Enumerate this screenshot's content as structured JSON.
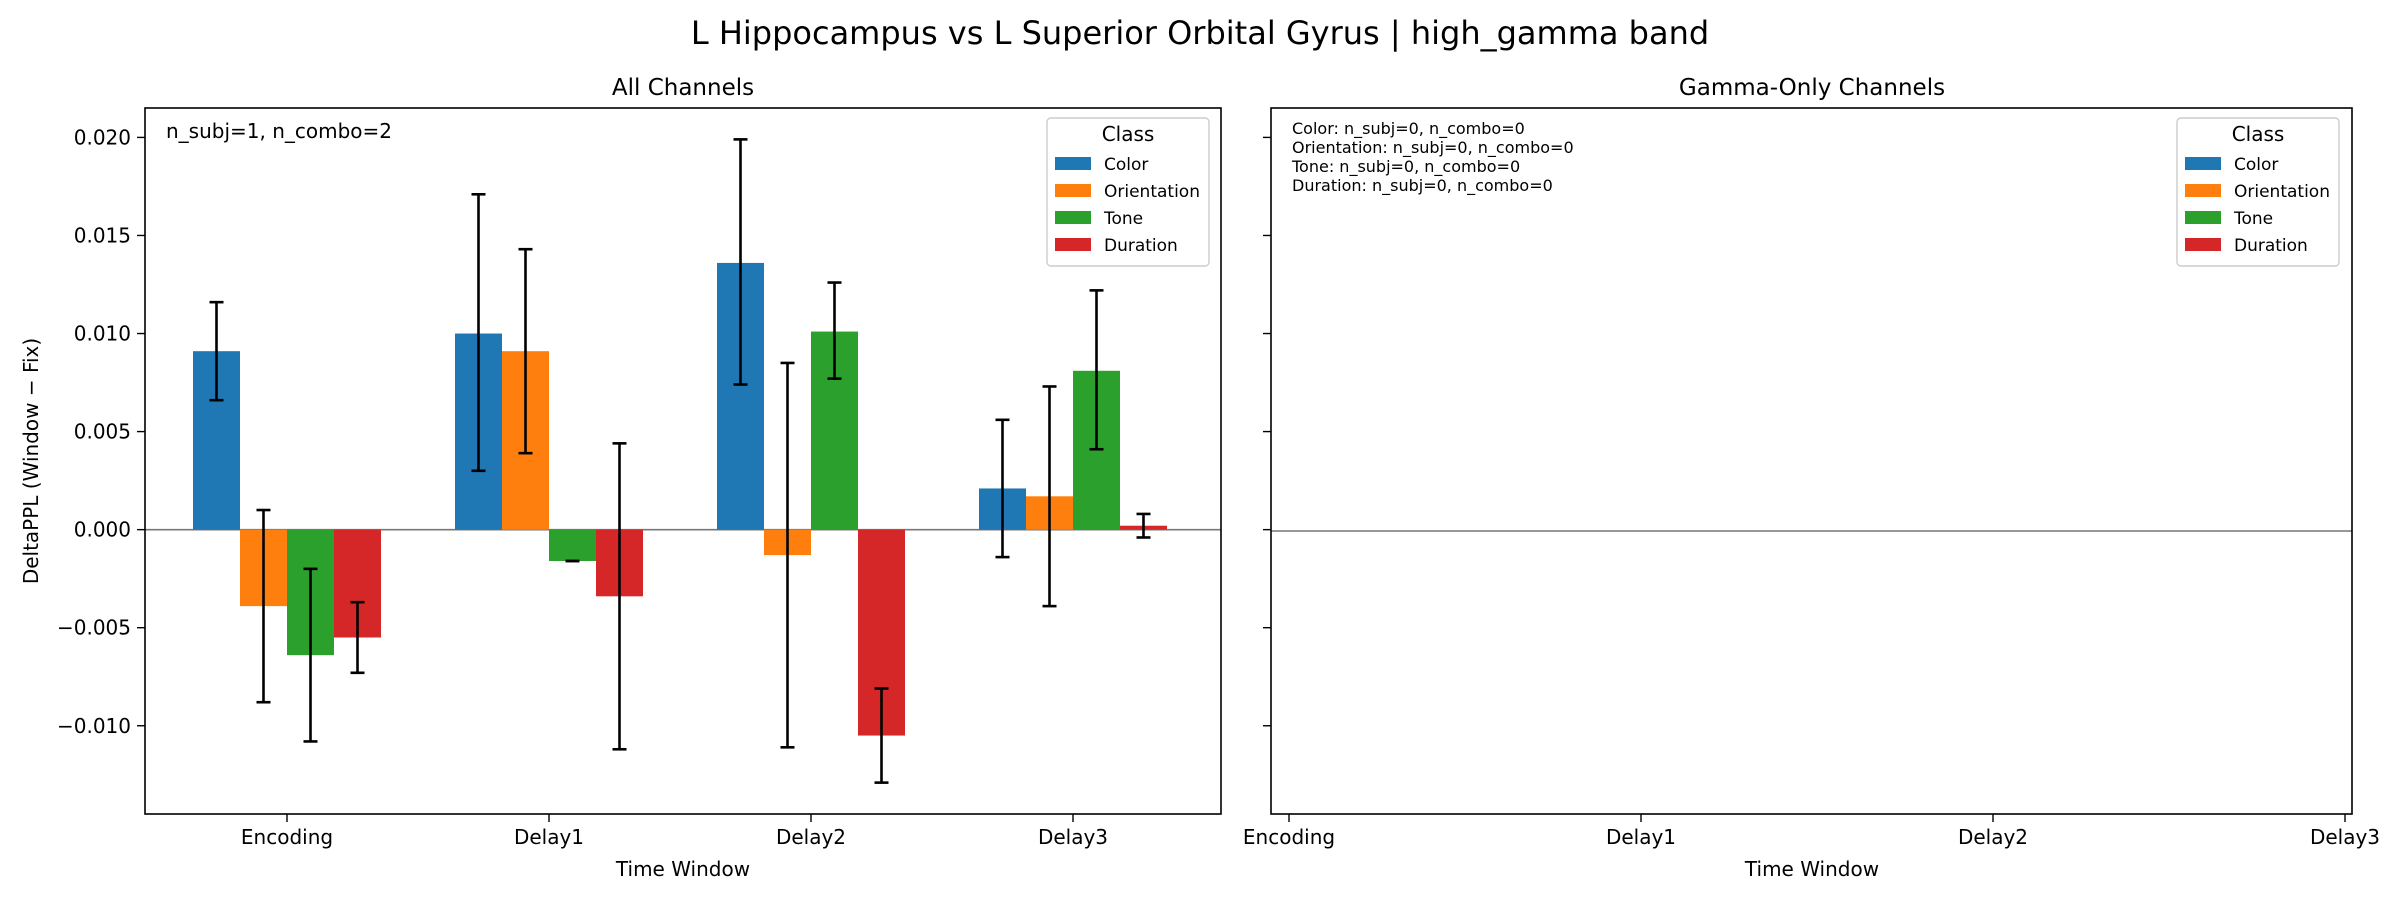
{
  "figure": {
    "suptitle": "L Hippocampus vs L Superior Orbital Gyrus  |  high_gamma band"
  },
  "colors": {
    "Color": "#1f77b4",
    "Orientation": "#ff7f0e",
    "Tone": "#2ca02c",
    "Duration": "#d62728"
  },
  "chart_data": [
    {
      "type": "bar",
      "title": "All Channels",
      "xlabel": "Time Window",
      "ylabel": "DeltaPPL (Window − Fix)",
      "categories": [
        "Encoding",
        "Delay1",
        "Delay2",
        "Delay3"
      ],
      "series": [
        {
          "name": "Color",
          "values": [
            0.0091,
            0.01,
            0.0136,
            0.0021
          ],
          "err_low": [
            0.0066,
            0.003,
            0.0074,
            -0.0014
          ],
          "err_high": [
            0.0116,
            0.0171,
            0.0199,
            0.0056
          ]
        },
        {
          "name": "Orientation",
          "values": [
            -0.0039,
            0.0091,
            -0.0013,
            0.0017
          ],
          "err_low": [
            -0.0088,
            0.0039,
            -0.0111,
            -0.0039
          ],
          "err_high": [
            0.001,
            0.0143,
            0.0085,
            0.0073
          ]
        },
        {
          "name": "Tone",
          "values": [
            -0.0064,
            -0.0016,
            0.0101,
            0.0081
          ],
          "err_low": [
            -0.0108,
            -0.0016,
            0.0077,
            0.0041
          ],
          "err_high": [
            -0.002,
            -0.0016,
            0.0126,
            0.0122
          ]
        },
        {
          "name": "Duration",
          "values": [
            -0.0055,
            -0.0034,
            -0.0105,
            0.0002
          ],
          "err_low": [
            -0.0073,
            -0.0112,
            -0.0129,
            -0.0004
          ],
          "err_high": [
            -0.0037,
            0.0044,
            -0.0081,
            0.0008
          ]
        }
      ],
      "ylim": [
        -0.0145,
        0.0215
      ],
      "yticks": [
        0.02,
        0.015,
        0.01,
        0.005,
        0.0,
        -0.005,
        -0.01
      ],
      "ytick_labels": [
        "0.020",
        "0.015",
        "0.010",
        "0.005",
        "0.000",
        "−0.005",
        "−0.010"
      ],
      "annotation": "n_subj=1, n_combo=2",
      "legend_title": "Class",
      "legend_placement": "upper-right"
    },
    {
      "type": "bar",
      "title": "Gamma-Only Channels",
      "xlabel": "Time Window",
      "categories": [
        "Encoding",
        "Delay1",
        "Delay2",
        "Delay3"
      ],
      "series": [],
      "annotations": [
        "Color: n_subj=0, n_combo=0",
        "Orientation: n_subj=0, n_combo=0",
        "Tone: n_subj=0, n_combo=0",
        "Duration: n_subj=0, n_combo=0"
      ],
      "legend_title": "Class",
      "legend_entries": [
        "Color",
        "Orientation",
        "Tone",
        "Duration"
      ],
      "legend_placement": "upper-right",
      "sharey": true
    }
  ]
}
